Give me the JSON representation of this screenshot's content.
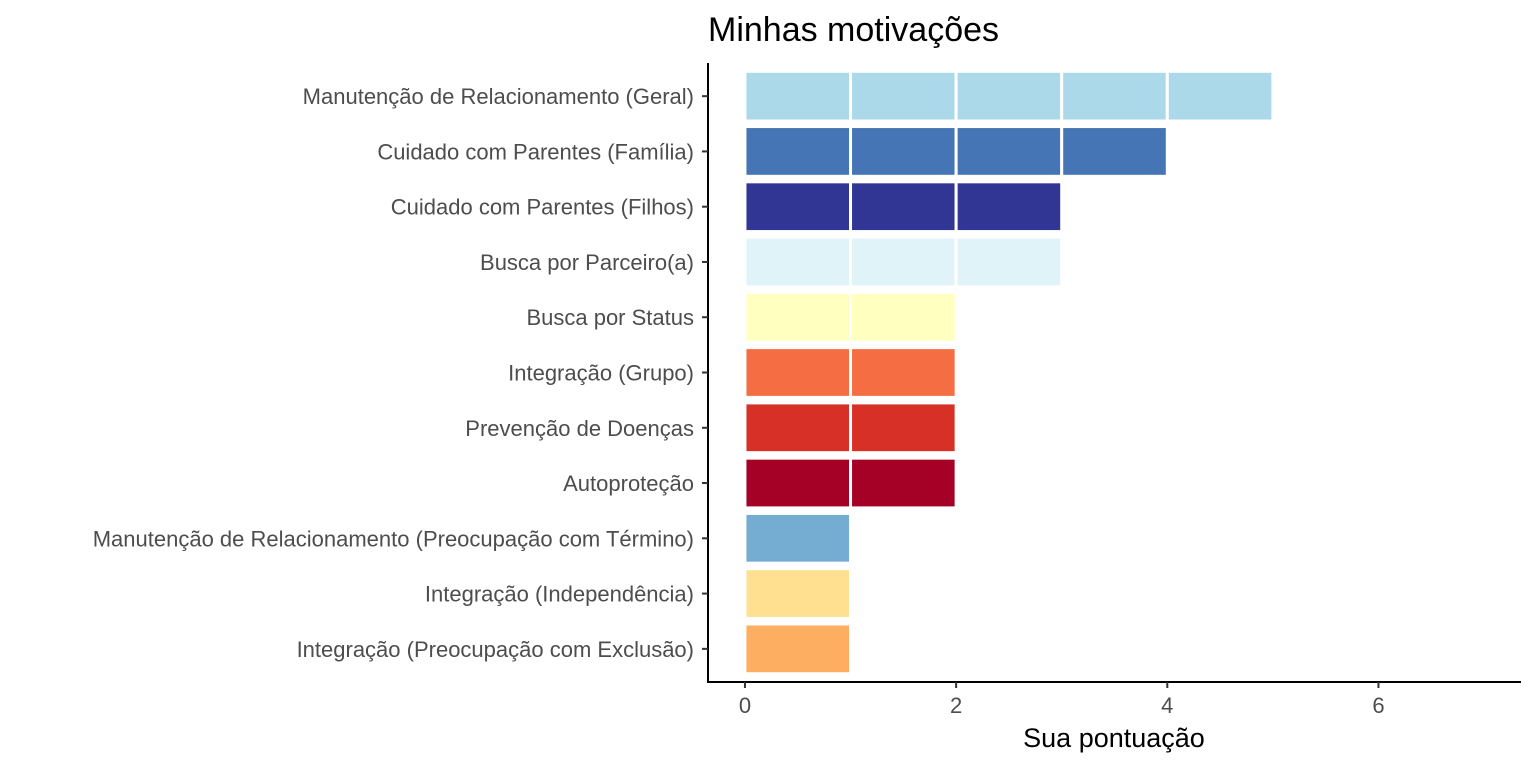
{
  "chart_data": {
    "type": "bar",
    "orientation": "horizontal",
    "stacked_unit_segments": true,
    "title": "Minhas motivações",
    "xlabel": "Sua pontuação",
    "ylabel": "",
    "xlim": [
      -0.35,
      7.35
    ],
    "x_ticks": [
      0,
      2,
      4,
      6
    ],
    "x_tick_labels": [
      "0",
      "2",
      "4",
      "6"
    ],
    "grid": false,
    "legend": "none",
    "categories": [
      "Manutenção de Relacionamento (Geral)",
      "Cuidado com Parentes (Família)",
      "Cuidado com Parentes (Filhos)",
      "Busca por Parceiro(a)",
      "Busca por Status",
      "Integração (Grupo)",
      "Prevenção de Doenças",
      "Autoproteção",
      "Manutenção de Relacionamento (Preocupação com Término)",
      "Integração (Independência)",
      "Integração (Preocupação com Exclusão)"
    ],
    "values": [
      5,
      4,
      3,
      3,
      2,
      2,
      2,
      2,
      1,
      1,
      1
    ],
    "colors": [
      "#abd9e9",
      "#4575b4",
      "#313695",
      "#e0f3f8",
      "#ffffbf",
      "#f46d43",
      "#d73027",
      "#a50026",
      "#74add1",
      "#fee090",
      "#fdae61"
    ]
  }
}
